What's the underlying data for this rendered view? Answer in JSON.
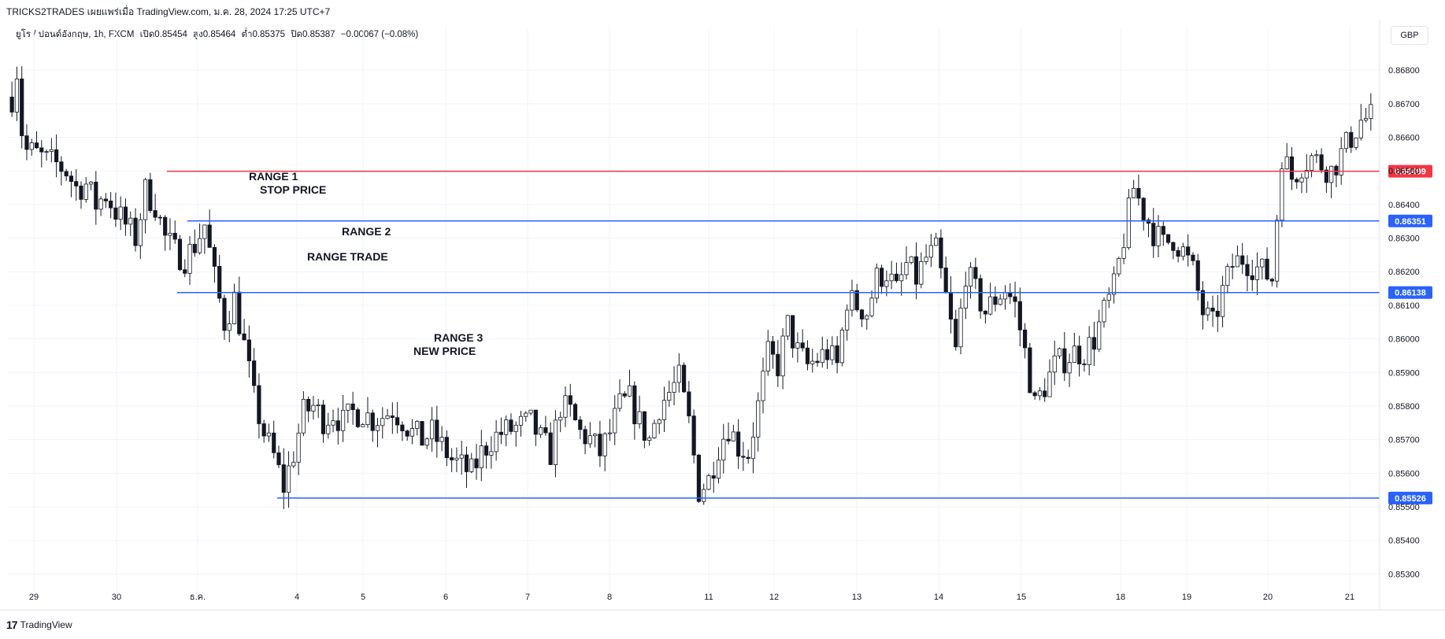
{
  "header": {
    "title": "TRICKS2TRADES เผยแพร่เมื่อ TradingView.com, ม.ค. 28, 2024 17:25 UTC+7"
  },
  "legend": {
    "symbol": "ยูโร / ปอนด์อังกฤษ, 1h, FXCM",
    "open": "เปิด0.85454",
    "high": "สูง0.85464",
    "low": "ต่ำ0.85375",
    "close": "ปิด0.85387",
    "change": "−0.00067 (−0.08%)"
  },
  "currency_button": "GBP",
  "footer": {
    "logo": "17",
    "brand": "TradingView"
  },
  "chart_data": {
    "type": "candlestick",
    "ylim": [
      0.8524,
      0.8688
    ],
    "y_ticks": [
      "0.86800",
      "0.86700",
      "0.86600",
      "0.86500",
      "0.86400",
      "0.86300",
      "0.86200",
      "0.86100",
      "0.86000",
      "0.85900",
      "0.85800",
      "0.85700",
      "0.85600",
      "0.85500",
      "0.85400",
      "0.85300"
    ],
    "x_ticks": [
      "29",
      "30",
      "ธ.ค.",
      "4",
      "5",
      "6",
      "7",
      "8",
      "11",
      "12",
      "13",
      "14",
      "15",
      "18",
      "19",
      "20",
      "21"
    ],
    "horizontal_lines": [
      {
        "price": 0.86499,
        "label": "0.86499",
        "color": "#f23645"
      },
      {
        "price": 0.86351,
        "label": "0.86351",
        "color": "#2962ff"
      },
      {
        "price": 0.86138,
        "label": "0.86138",
        "color": "#2962ff"
      },
      {
        "price": 0.85526,
        "label": "0.85526",
        "color": "#2962ff"
      }
    ],
    "annotations": [
      "RANGE 1",
      "STOP PRICE",
      "RANGE 2",
      "RANGE TRADE",
      "RANGE 3",
      "NEW PRICE"
    ],
    "price_path": [
      [
        0,
        0.8672
      ],
      [
        1,
        0.868
      ],
      [
        2,
        0.8662
      ],
      [
        3,
        0.8656
      ],
      [
        5,
        0.8655
      ],
      [
        7,
        0.8653
      ],
      [
        9,
        0.8652
      ],
      [
        11,
        0.865
      ],
      [
        13,
        0.8645
      ],
      [
        15,
        0.8646
      ],
      [
        17,
        0.864
      ],
      [
        19,
        0.8643
      ],
      [
        21,
        0.8638
      ],
      [
        23,
        0.8634
      ],
      [
        25,
        0.863
      ],
      [
        27,
        0.8644
      ],
      [
        29,
        0.864
      ],
      [
        31,
        0.863
      ],
      [
        33,
        0.8626
      ],
      [
        35,
        0.8624
      ],
      [
        37,
        0.8628
      ],
      [
        39,
        0.8634
      ],
      [
        41,
        0.8618
      ],
      [
        43,
        0.8605
      ],
      [
        45,
        0.8612
      ],
      [
        47,
        0.8598
      ],
      [
        49,
        0.8582
      ],
      [
        51,
        0.8572
      ],
      [
        53,
        0.8565
      ],
      [
        55,
        0.8556
      ],
      [
        57,
        0.8566
      ],
      [
        59,
        0.8578
      ],
      [
        61,
        0.858
      ],
      [
        63,
        0.8576
      ],
      [
        65,
        0.8578
      ],
      [
        67,
        0.8575
      ],
      [
        69,
        0.8578
      ],
      [
        71,
        0.8578
      ],
      [
        73,
        0.8576
      ],
      [
        75,
        0.8577
      ],
      [
        77,
        0.8579
      ],
      [
        79,
        0.8576
      ],
      [
        81,
        0.8572
      ],
      [
        83,
        0.857
      ],
      [
        85,
        0.8572
      ],
      [
        87,
        0.8568
      ],
      [
        89,
        0.8564
      ],
      [
        91,
        0.8562
      ],
      [
        93,
        0.856
      ],
      [
        95,
        0.8566
      ],
      [
        97,
        0.857
      ],
      [
        99,
        0.8572
      ],
      [
        101,
        0.8573
      ],
      [
        103,
        0.8574
      ],
      [
        105,
        0.8575
      ],
      [
        107,
        0.857
      ],
      [
        109,
        0.8566
      ],
      [
        111,
        0.858
      ],
      [
        113,
        0.8578
      ],
      [
        115,
        0.8572
      ],
      [
        117,
        0.857
      ],
      [
        119,
        0.8566
      ],
      [
        121,
        0.8572
      ],
      [
        123,
        0.858
      ],
      [
        125,
        0.8582
      ],
      [
        127,
        0.8575
      ],
      [
        129,
        0.857
      ],
      [
        131,
        0.858
      ],
      [
        133,
        0.8584
      ],
      [
        135,
        0.8588
      ],
      [
        137,
        0.8575
      ],
      [
        139,
        0.8555
      ],
      [
        141,
        0.8558
      ],
      [
        143,
        0.8568
      ],
      [
        145,
        0.8574
      ],
      [
        147,
        0.8568
      ],
      [
        149,
        0.8566
      ],
      [
        151,
        0.858
      ],
      [
        153,
        0.8595
      ],
      [
        155,
        0.8592
      ],
      [
        157,
        0.8604
      ],
      [
        159,
        0.8596
      ],
      [
        161,
        0.8592
      ],
      [
        163,
        0.8594
      ],
      [
        165,
        0.8596
      ],
      [
        167,
        0.8592
      ],
      [
        169,
        0.8612
      ],
      [
        171,
        0.861
      ],
      [
        173,
        0.8608
      ],
      [
        175,
        0.8618
      ],
      [
        177,
        0.862
      ],
      [
        179,
        0.8614
      ],
      [
        181,
        0.8622
      ],
      [
        183,
        0.8618
      ],
      [
        185,
        0.8624
      ],
      [
        187,
        0.8626
      ],
      [
        189,
        0.8612
      ],
      [
        191,
        0.8596
      ],
      [
        193,
        0.862
      ],
      [
        195,
        0.8614
      ],
      [
        197,
        0.8608
      ],
      [
        199,
        0.8612
      ],
      [
        201,
        0.8615
      ],
      [
        203,
        0.861
      ],
      [
        205,
        0.8596
      ],
      [
        207,
        0.858
      ],
      [
        209,
        0.8586
      ],
      [
        211,
        0.8592
      ],
      [
        213,
        0.8594
      ],
      [
        215,
        0.8596
      ],
      [
        217,
        0.8596
      ],
      [
        219,
        0.86
      ],
      [
        221,
        0.8608
      ],
      [
        223,
        0.8615
      ],
      [
        225,
        0.863
      ],
      [
        227,
        0.8645
      ],
      [
        229,
        0.8638
      ],
      [
        231,
        0.8632
      ],
      [
        233,
        0.8628
      ],
      [
        235,
        0.863
      ],
      [
        237,
        0.8626
      ],
      [
        239,
        0.862
      ],
      [
        241,
        0.8608
      ],
      [
        243,
        0.8604
      ],
      [
        245,
        0.8614
      ],
      [
        247,
        0.8622
      ],
      [
        249,
        0.8624
      ],
      [
        251,
        0.8622
      ],
      [
        253,
        0.862
      ],
      [
        255,
        0.8618
      ],
      [
        257,
        0.8655
      ],
      [
        259,
        0.8648
      ],
      [
        261,
        0.8652
      ],
      [
        263,
        0.8654
      ],
      [
        265,
        0.8652
      ],
      [
        267,
        0.865
      ],
      [
        269,
        0.8655
      ],
      [
        271,
        0.866
      ],
      [
        273,
        0.8665
      ],
      [
        275,
        0.8666
      ]
    ]
  }
}
